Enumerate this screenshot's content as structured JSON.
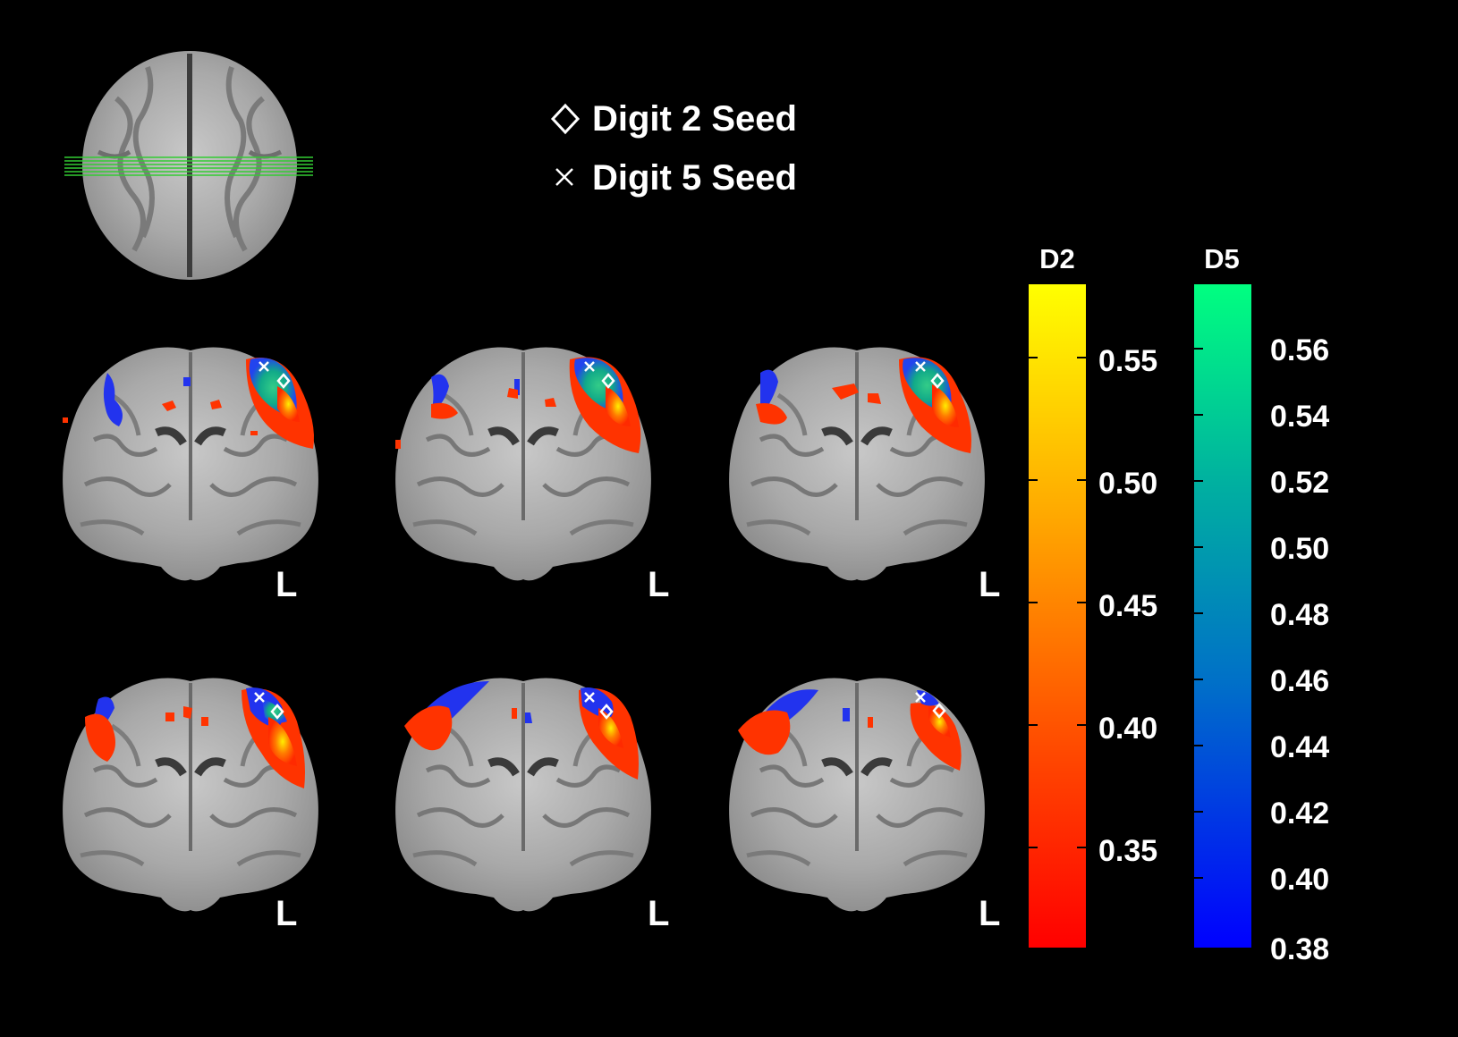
{
  "legend": {
    "d2_seed": "Digit 2 Seed",
    "d5_seed": "Digit 5 Seed"
  },
  "orientation_label": "L",
  "colorbars": {
    "d2": {
      "title": "D2",
      "ticks": [
        "0.55",
        "0.50",
        "0.45",
        "0.40",
        "0.35"
      ],
      "colors": [
        "#ffff00",
        "#ffb000",
        "#ff6a00",
        "#ff2200",
        "#ff0000"
      ]
    },
    "d5": {
      "title": "D5",
      "ticks": [
        "0.56",
        "0.54",
        "0.52",
        "0.50",
        "0.48",
        "0.46",
        "0.44",
        "0.42",
        "0.40",
        "0.38"
      ],
      "colors": [
        "#00ff80",
        "#00a8a8",
        "#0060d0",
        "#0000ff"
      ]
    }
  },
  "colors": {
    "background": "#000000",
    "reference_lines": "#33cc33",
    "d2_overlay": "#ff3300",
    "d5_overlay": "#2233ee",
    "overlap": "#22aa77"
  }
}
